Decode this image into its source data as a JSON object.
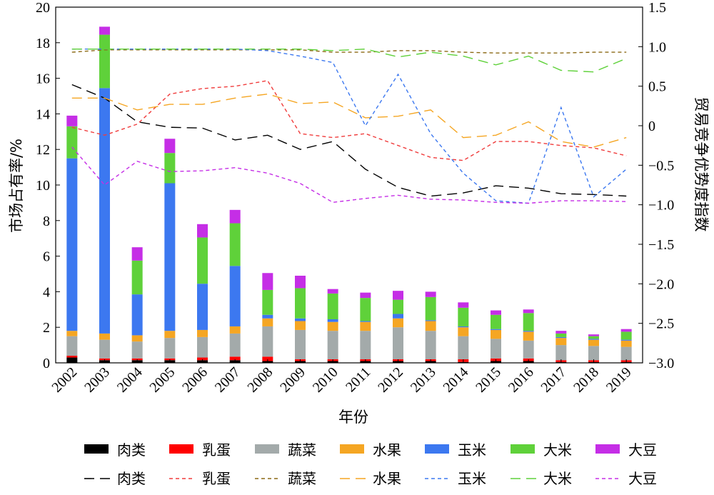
{
  "chart_data": {
    "type": "bar",
    "xlabel": "年份",
    "ylabel_left": "市场占有率/%",
    "ylabel_right": "贸易竞争优势度指数",
    "ylim_left": [
      0,
      20
    ],
    "yticks_left": [
      "0",
      "2",
      "4",
      "6",
      "8",
      "10",
      "12",
      "14",
      "16",
      "18",
      "20"
    ],
    "ylim_right": [
      -3.0,
      1.5
    ],
    "yticks_right": [
      "−3.0",
      "−2.5",
      "−2.0",
      "−1.5",
      "−1.0",
      "−0.5",
      "0",
      "0.5",
      "1.0",
      "1.5"
    ],
    "categories": [
      "2002",
      "2003",
      "2004",
      "2005",
      "2006",
      "2007",
      "2008",
      "2009",
      "2010",
      "2011",
      "2012",
      "2013",
      "2014",
      "2015",
      "2016",
      "2017",
      "2018",
      "2019"
    ],
    "bar_series": [
      {
        "name": "肉类",
        "color": "#000000",
        "values": [
          0.3,
          0.15,
          0.15,
          0.15,
          0.15,
          0.15,
          0.1,
          0.1,
          0.1,
          0.1,
          0.1,
          0.1,
          0.05,
          0.1,
          0.1,
          0.05,
          0.05,
          0.05
        ]
      },
      {
        "name": "乳蛋",
        "color": "#ff0000",
        "values": [
          0.1,
          0.1,
          0.1,
          0.1,
          0.15,
          0.2,
          0.25,
          0.1,
          0.1,
          0.1,
          0.1,
          0.1,
          0.15,
          0.15,
          0.15,
          0.1,
          0.1,
          0.1
        ]
      },
      {
        "name": "蔬菜",
        "color": "#a3aaaa",
        "values": [
          1.1,
          1.05,
          0.95,
          1.15,
          1.15,
          1.3,
          1.7,
          1.65,
          1.6,
          1.6,
          1.8,
          1.6,
          1.3,
          1.1,
          1.0,
          0.85,
          0.8,
          0.75
        ]
      },
      {
        "name": "水果",
        "color": "#f5a623",
        "values": [
          0.3,
          0.35,
          0.35,
          0.4,
          0.4,
          0.4,
          0.45,
          0.5,
          0.5,
          0.5,
          0.5,
          0.55,
          0.5,
          0.5,
          0.5,
          0.4,
          0.35,
          0.35
        ]
      },
      {
        "name": "玉米",
        "color": "#3c78f0",
        "values": [
          9.7,
          13.8,
          2.3,
          8.3,
          2.6,
          3.4,
          0.2,
          0.15,
          0.15,
          0.05,
          0.25,
          0.05,
          0.05,
          0.05,
          0.05,
          0.05,
          0.05,
          0.05
        ]
      },
      {
        "name": "大米",
        "color": "#5fd13a",
        "values": [
          1.8,
          3.0,
          1.9,
          1.7,
          2.6,
          2.4,
          1.4,
          1.7,
          1.45,
          1.3,
          0.8,
          1.3,
          1.05,
          0.8,
          1.0,
          0.2,
          0.15,
          0.45
        ]
      },
      {
        "name": "大豆",
        "color": "#c52ee6",
        "values": [
          0.6,
          0.45,
          0.75,
          0.8,
          0.75,
          0.75,
          0.95,
          0.7,
          0.25,
          0.3,
          0.5,
          0.3,
          0.3,
          0.25,
          0.2,
          0.15,
          0.1,
          0.15
        ]
      }
    ],
    "line_series": [
      {
        "name": "肉类",
        "color": "#000000",
        "dash": "14,8",
        "values": [
          0.52,
          0.35,
          0.05,
          -0.02,
          -0.03,
          -0.18,
          -0.12,
          -0.3,
          -0.2,
          -0.55,
          -0.78,
          -0.89,
          -0.85,
          -0.76,
          -0.79,
          -0.86,
          -0.87,
          -0.89
        ]
      },
      {
        "name": "乳蛋",
        "color": "#f03c3c",
        "dash": "5,4",
        "values": [
          -0.02,
          -0.12,
          0.02,
          0.4,
          0.47,
          0.5,
          0.57,
          -0.1,
          -0.15,
          -0.1,
          -0.25,
          -0.4,
          -0.44,
          -0.2,
          -0.2,
          -0.25,
          -0.28,
          -0.38
        ]
      },
      {
        "name": "蔬菜",
        "color": "#8b6914",
        "dash": "5,4",
        "values": [
          0.93,
          0.96,
          0.96,
          0.96,
          0.96,
          0.96,
          0.96,
          0.96,
          0.93,
          0.93,
          0.95,
          0.95,
          0.93,
          0.92,
          0.92,
          0.92,
          0.93,
          0.93
        ]
      },
      {
        "name": "水果",
        "color": "#f5a623",
        "dash": "14,8",
        "values": [
          0.35,
          0.35,
          0.2,
          0.27,
          0.27,
          0.35,
          0.4,
          0.28,
          0.3,
          0.1,
          0.12,
          0.2,
          -0.15,
          -0.12,
          0.05,
          -0.2,
          -0.27,
          -0.15
        ]
      },
      {
        "name": "玉米",
        "color": "#3c78f0",
        "dash": "5,4",
        "values": [
          0.97,
          0.97,
          0.97,
          0.97,
          0.97,
          0.97,
          0.95,
          0.88,
          0.8,
          0.0,
          0.65,
          -0.1,
          -0.6,
          -0.95,
          -0.98,
          0.23,
          -0.9,
          -0.55
        ]
      },
      {
        "name": "大米",
        "color": "#5fd13a",
        "dash": "14,8",
        "values": [
          0.97,
          0.97,
          0.97,
          0.97,
          0.97,
          0.97,
          0.97,
          0.97,
          0.95,
          0.97,
          0.87,
          0.93,
          0.88,
          0.77,
          0.88,
          0.7,
          0.68,
          0.85
        ]
      },
      {
        "name": "大豆",
        "color": "#c52ee6",
        "dash": "5,4",
        "values": [
          -0.27,
          -0.75,
          -0.45,
          -0.58,
          -0.57,
          -0.53,
          -0.6,
          -0.73,
          -0.97,
          -0.92,
          -0.88,
          -0.93,
          -0.94,
          -0.97,
          -0.98,
          -0.95,
          -0.95,
          -0.96
        ]
      }
    ]
  }
}
